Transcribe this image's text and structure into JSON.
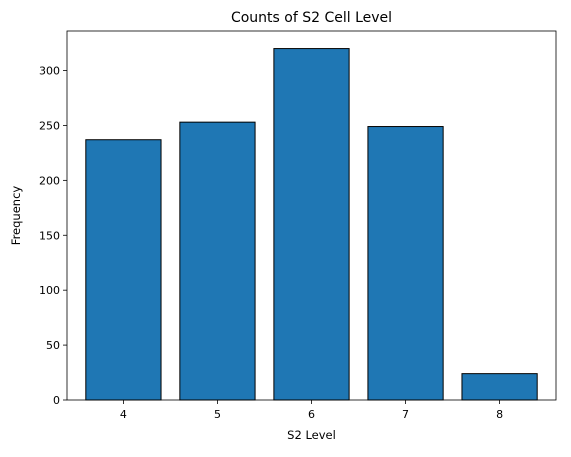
{
  "chart_data": {
    "type": "bar",
    "title": "Counts of S2 Cell Level",
    "xlabel": "S2 Level",
    "ylabel": "Frequency",
    "categories": [
      "4",
      "5",
      "6",
      "7",
      "8"
    ],
    "values": [
      237,
      253,
      320,
      249,
      24
    ],
    "ylim": [
      0,
      336
    ],
    "yticks": [
      0,
      50,
      100,
      150,
      200,
      250,
      300
    ],
    "grid": false,
    "legend": "none",
    "bar_color": "#1f77b4",
    "bar_edge_color": "#000000"
  }
}
